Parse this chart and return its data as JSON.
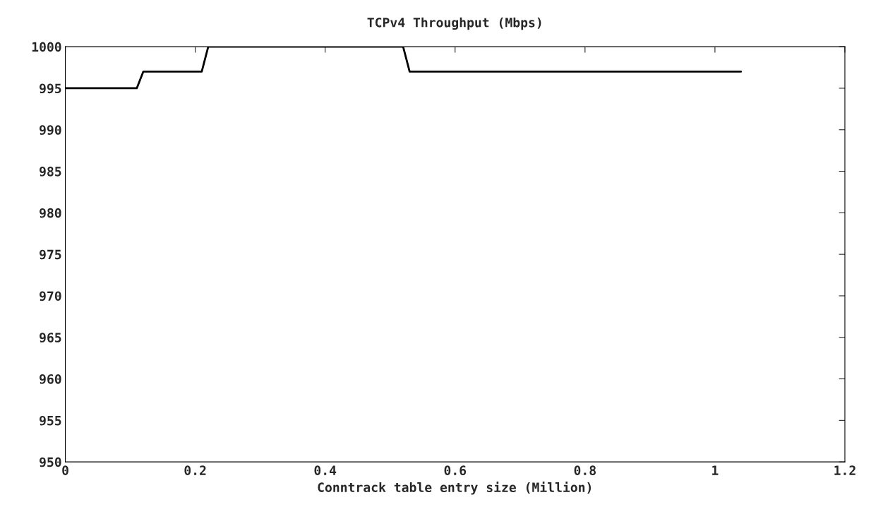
{
  "chart_data": {
    "type": "line",
    "title": "TCPv4 Throughput (Mbps)",
    "xlabel": "Conntrack table entry size (Million)",
    "x": [
      0,
      0.11,
      0.12,
      0.21,
      0.22,
      0.52,
      0.53,
      1.04
    ],
    "series": [
      {
        "color": "#000000",
        "values": [
          995,
          995,
          997,
          997,
          1000,
          1000,
          997,
          997
        ]
      }
    ],
    "xlim": [
      0,
      1.2
    ],
    "ylim": [
      950,
      1000
    ],
    "xticks": [
      0,
      0.2,
      0.4,
      0.6,
      0.8,
      1,
      1.2
    ],
    "yticks": [
      950,
      955,
      960,
      965,
      970,
      975,
      980,
      985,
      990,
      995,
      1000
    ],
    "grid": false,
    "marker": "none",
    "line_style": "solid"
  }
}
